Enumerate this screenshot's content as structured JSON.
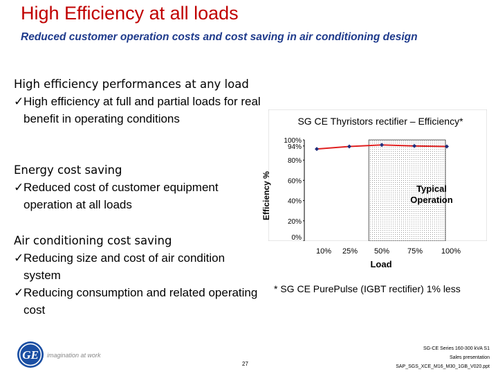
{
  "header": {
    "title": "High Efficiency at all loads",
    "subtitle": "Reduced customer operation costs and cost saving in air conditioning design"
  },
  "blocks": [
    {
      "head": "High efficiency performances at any load",
      "items": [
        "High efficiency at full and partial loads for real benefit in operating conditions"
      ]
    },
    {
      "head": "Energy cost saving",
      "items": [
        "Reduced cost of customer equipment operation at all loads"
      ]
    },
    {
      "head": "Air conditioning cost saving",
      "items": [
        "Reducing size and cost of air condition system",
        "Reducing consumption and related operating cost"
      ]
    }
  ],
  "chart_data": {
    "type": "line",
    "title": "SG CE Thyristors rectifier – Efficiency*",
    "xlabel": "Load",
    "ylabel": "Efficiency %",
    "categories": [
      "10%",
      "25%",
      "50%",
      "75%",
      "100%"
    ],
    "series": [
      {
        "values": [
          91,
          93.5,
          95,
          94,
          93.5
        ]
      }
    ],
    "yticks": [
      "0%",
      "20%",
      "40%",
      "60%",
      "80%",
      "94%",
      "100%"
    ],
    "ylim": [
      0,
      100
    ],
    "highlight_region": {
      "label": "Typical Operation",
      "x_from": "40%",
      "x_to": "100%"
    },
    "line_color": "#e02020",
    "marker_color": "#1f2d7a",
    "grid": false
  },
  "footnote": "* SG CE PurePulse (IGBT rectifier) 1% less",
  "footer": {
    "tagline": "imagination at work",
    "page_number": "27",
    "lines": [
      "SG-CE Series 160-300 kVA S1",
      "Sales presentation",
      "SAP_SGS_XCE_M16_M30_1GB_V020.ppt"
    ]
  },
  "icons": {
    "check": "checkmark-icon",
    "logo": "ge-logo"
  },
  "colors": {
    "title": "#c00000",
    "subtitle": "#1f3b8c"
  }
}
